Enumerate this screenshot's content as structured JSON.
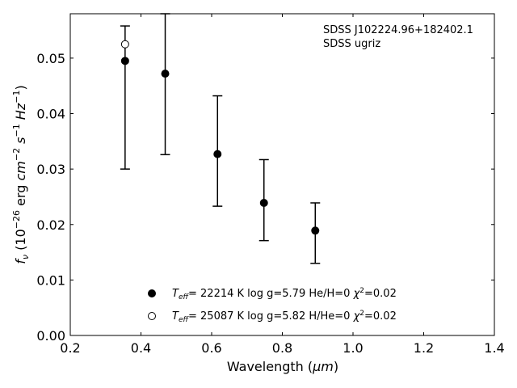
{
  "chart_data": {
    "type": "scatter",
    "xlabel": "Wavelength (",
    "xlabel_unit": "μm",
    "xlabel_close": ")",
    "ylabel": {
      "f": "f",
      "nu": "ν",
      "pre": " (10",
      "exp26": "−26",
      "erg": " erg ",
      "cm": "cm",
      "cm_exp": "−2",
      "s": " s",
      "s_exp": "−1",
      "hz": " Hz",
      "hz_exp": "−1",
      "close": ")"
    },
    "xlim": [
      0.2,
      1.4
    ],
    "ylim": [
      0.0,
      0.058
    ],
    "xticks": [
      0.2,
      0.4,
      0.6,
      0.8,
      1.0,
      1.2,
      1.4
    ],
    "xtick_labels": [
      "0.2",
      "0.4",
      "0.6",
      "0.8",
      "1.0",
      "1.2",
      "1.4"
    ],
    "yticks": [
      0.0,
      0.01,
      0.02,
      0.03,
      0.04,
      0.05
    ],
    "ytick_labels": [
      "0.00",
      "0.01",
      "0.02",
      "0.03",
      "0.04",
      "0.05"
    ],
    "grid": false,
    "annotation": [
      "SDSS J102224.96+182402.1",
      "SDSS ugriz"
    ],
    "observed": {
      "x": [
        0.3551,
        0.4686,
        0.6166,
        0.748,
        0.8932
      ],
      "y": [
        0.0495,
        0.0472,
        0.0327,
        0.0239,
        0.0189
      ],
      "yerr_low": [
        0.0195,
        0.0146,
        0.0094,
        0.0068,
        0.0059
      ],
      "yerr_high": [
        0.0063,
        0.0108,
        0.0105,
        0.0078,
        0.005
      ]
    },
    "series": [
      {
        "marker": "filled",
        "teff_symbol": "T",
        "teff_sub": "eff",
        "label_rest": "= 22214 K  log g=5.79  He/H=0  ",
        "chi": "χ",
        "chi_exp": "2",
        "chi_rest": "=0.02",
        "x": [
          0.3551,
          0.4686,
          0.6166,
          0.748,
          0.8932
        ],
        "y": [
          0.0495,
          0.0472,
          0.0327,
          0.0239,
          0.0189
        ]
      },
      {
        "marker": "open",
        "teff_symbol": "T",
        "teff_sub": "eff",
        "label_rest": "= 25087 K  log g=5.82  H/He=0  ",
        "chi": "χ",
        "chi_exp": "2",
        "chi_rest": "=0.02",
        "x": [
          0.3551
        ],
        "y": [
          0.0525
        ]
      }
    ],
    "legend_position": "lower-center",
    "colors": {
      "axes": "#000000",
      "marker": "#000000",
      "background": "#ffffff"
    }
  }
}
